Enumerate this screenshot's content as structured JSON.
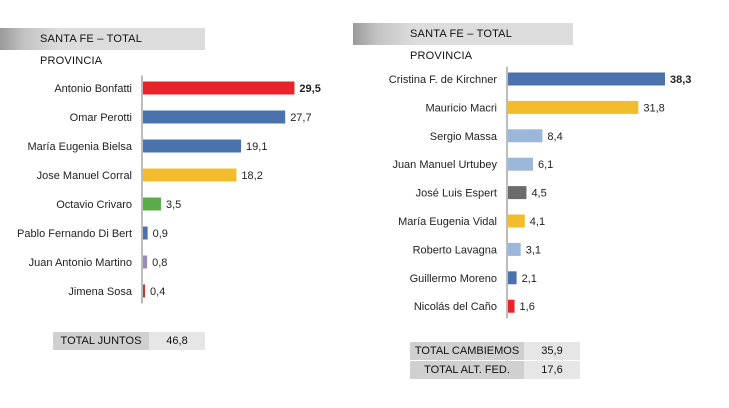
{
  "colors": {
    "red": "#e8232a",
    "blue": "#4a73ad",
    "yellow": "#f3bc2c",
    "green": "#5aab4a",
    "purple": "#9b8ab6",
    "lightblue": "#9bb7d9",
    "gray": "#6b6b6b"
  },
  "chart_data": [
    {
      "type": "bar",
      "orientation": "horizontal",
      "title": "SANTA FE – TOTAL PROVINCIA",
      "categories": [
        "Antonio Bonfatti",
        "Omar Perotti",
        "María Eugenia Bielsa",
        "Jose Manuel Corral",
        "Octavio Crivaro",
        "Pablo Fernando Di Bert",
        "Juan Antonio Martino",
        "Jimena Sosa"
      ],
      "values": [
        29.5,
        27.7,
        19.1,
        18.2,
        3.5,
        0.9,
        0.8,
        0.4
      ],
      "value_labels": [
        "29,5",
        "27,7",
        "19,1",
        "18,2",
        "3,5",
        "0,9",
        "0,8",
        "0,4"
      ],
      "bold_value_index": 0,
      "bar_colors": [
        "#e8232a",
        "#4a73ad",
        "#4a73ad",
        "#f3bc2c",
        "#5aab4a",
        "#4a73ad",
        "#9b8ab6",
        "#c0392b"
      ],
      "xlim": [
        0,
        30
      ],
      "grid": false,
      "totals": [
        {
          "label": "TOTAL JUNTOS",
          "value": "46,8"
        }
      ]
    },
    {
      "type": "bar",
      "orientation": "horizontal",
      "title": "SANTA FE – TOTAL PROVINCIA",
      "categories": [
        "Cristina F. de Kirchner",
        "Mauricio Macri",
        "Sergio Massa",
        "Juan Manuel Urtubey",
        "José Luis Espert",
        "María Eugenia Vidal",
        "Roberto Lavagna",
        "Guillermo Moreno",
        "Nicolás del Caño"
      ],
      "values": [
        38.3,
        31.8,
        8.4,
        6.1,
        4.5,
        4.1,
        3.1,
        2.1,
        1.6
      ],
      "value_labels": [
        "38,3",
        "31,8",
        "8,4",
        "6,1",
        "4,5",
        "4,1",
        "3,1",
        "2,1",
        "1,6"
      ],
      "bold_value_index": 0,
      "bar_colors": [
        "#4a73ad",
        "#f3bc2c",
        "#9bb7d9",
        "#9bb7d9",
        "#6b6b6b",
        "#f3bc2c",
        "#9bb7d9",
        "#4a73ad",
        "#e8232a"
      ],
      "xlim": [
        0,
        38.3
      ],
      "grid": false,
      "totals": [
        {
          "label": "TOTAL CAMBIEMOS",
          "value": "35,9"
        },
        {
          "label": "TOTAL ALT. FED.",
          "value": "17,6"
        }
      ]
    }
  ]
}
